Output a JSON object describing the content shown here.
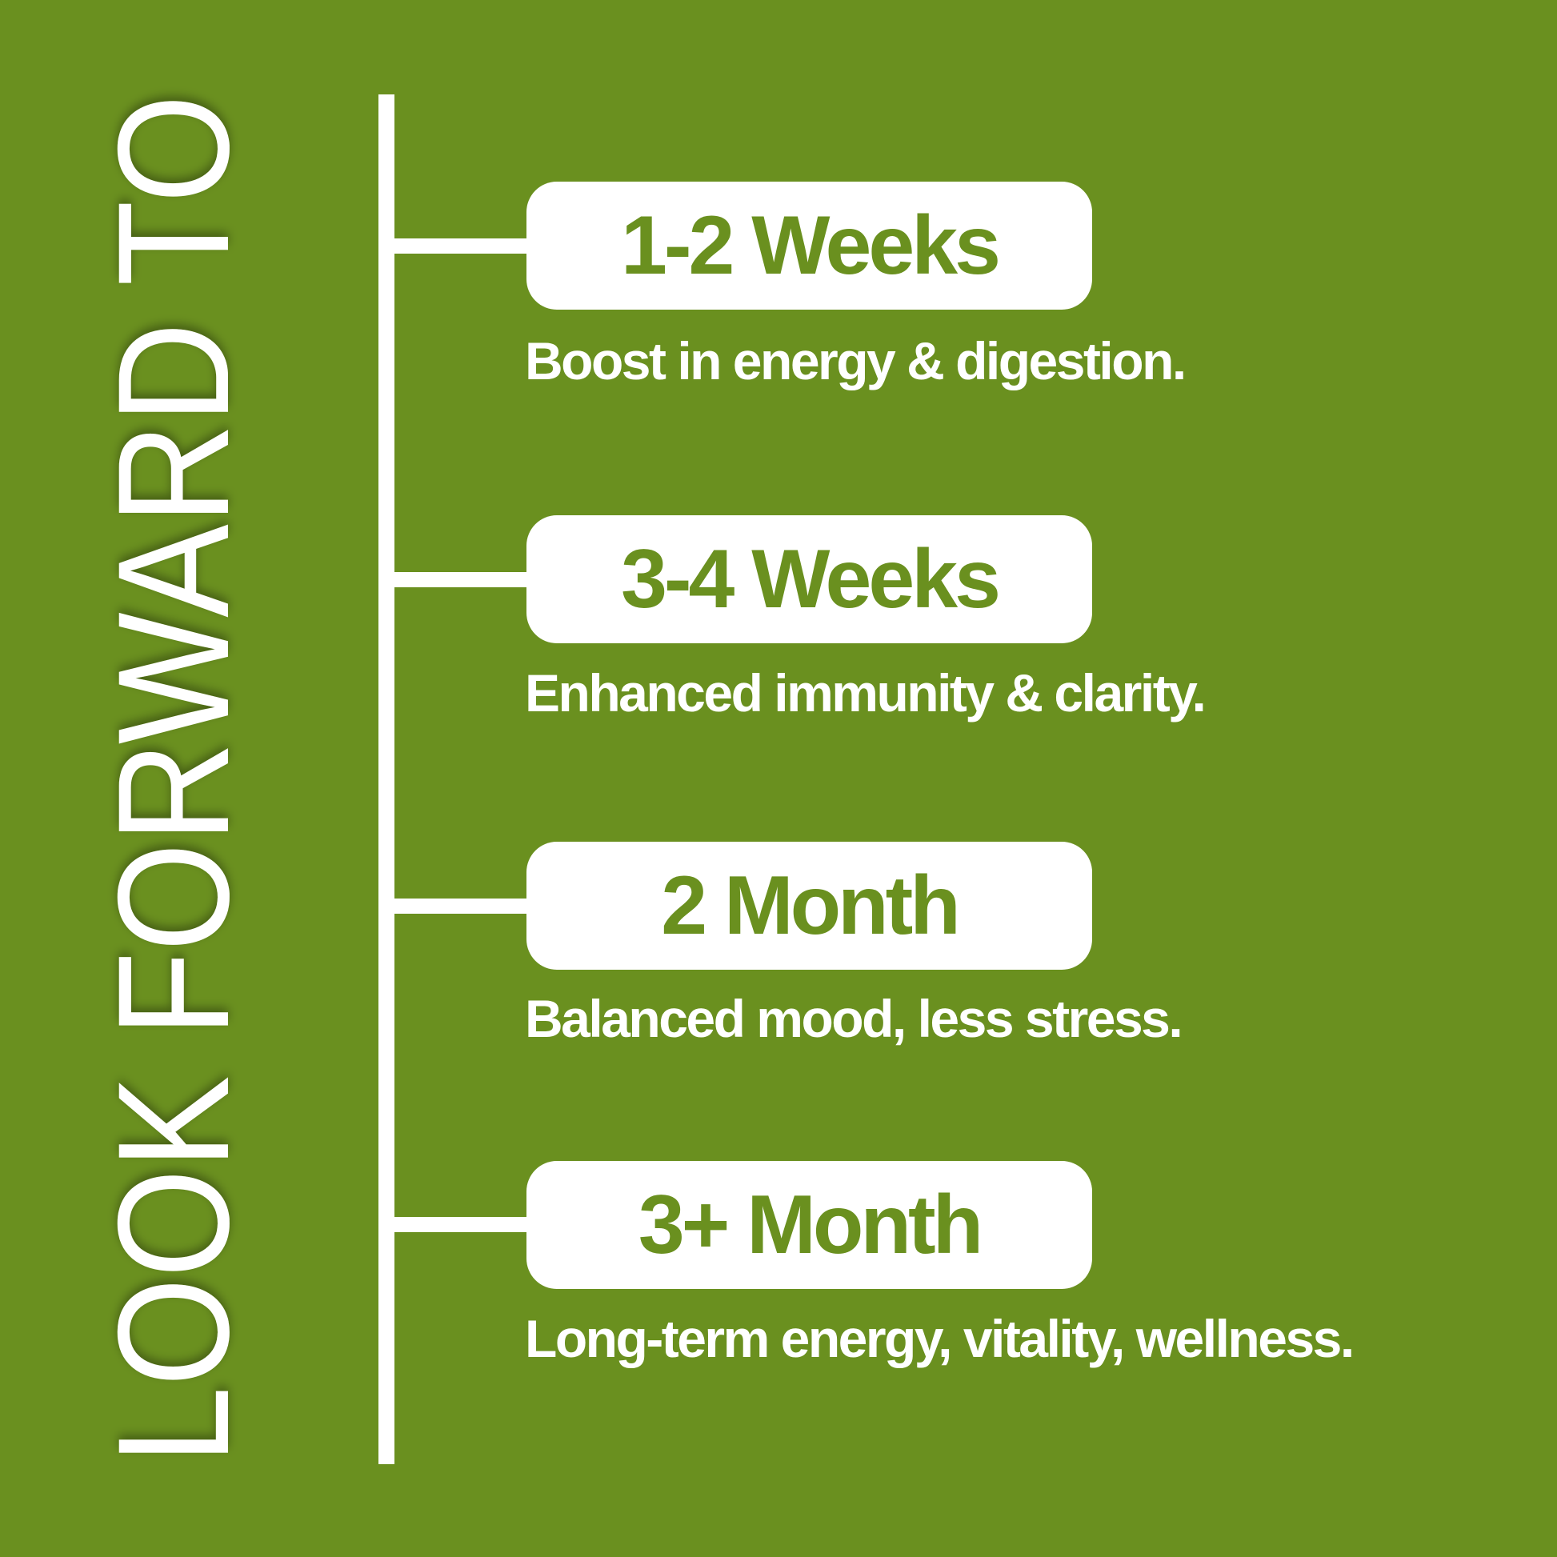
{
  "title": "LOOK FORWARD TO",
  "colors": {
    "background": "#6a901f",
    "accent_text": "#6a901f",
    "foreground": "#ffffff"
  },
  "milestones": [
    {
      "label": "1-2 Weeks",
      "description": "Boost in energy & digestion."
    },
    {
      "label": "3-4 Weeks",
      "description": "Enhanced immunity & clarity."
    },
    {
      "label": "2 Month",
      "description": "Balanced mood, less stress."
    },
    {
      "label": "3+ Month",
      "description": "Long-term energy, vitality, wellness."
    }
  ]
}
